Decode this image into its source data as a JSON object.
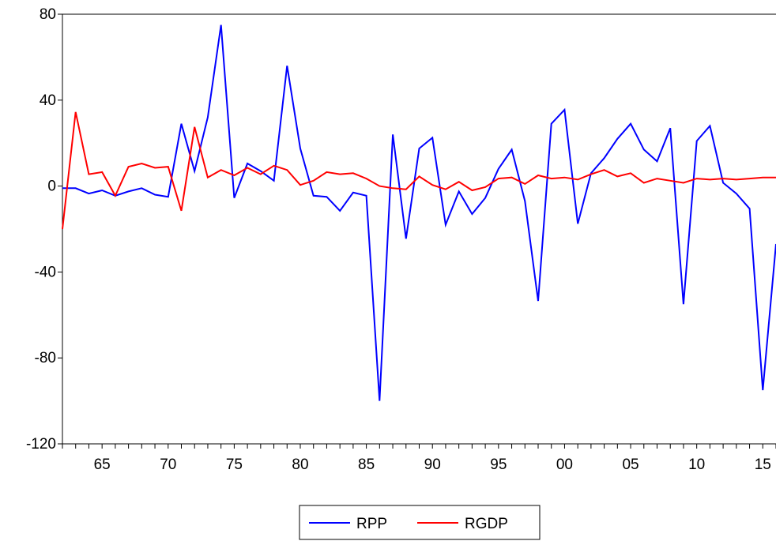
{
  "chart_data": {
    "type": "line",
    "title": "",
    "xlabel": "",
    "ylabel": "",
    "x": [
      1962,
      1963,
      1964,
      1965,
      1966,
      1967,
      1968,
      1969,
      1970,
      1971,
      1972,
      1973,
      1974,
      1975,
      1976,
      1977,
      1978,
      1979,
      1980,
      1981,
      1982,
      1983,
      1984,
      1985,
      1986,
      1987,
      1988,
      1989,
      1990,
      1991,
      1992,
      1993,
      1994,
      1995,
      1996,
      1997,
      1998,
      1999,
      2000,
      2001,
      2002,
      2003,
      2004,
      2005,
      2006,
      2007,
      2008,
      2009,
      2010,
      2011,
      2012,
      2013,
      2014,
      2015,
      2016
    ],
    "xlim": [
      1962,
      2016
    ],
    "ylim": [
      -120,
      80
    ],
    "x_ticks": [
      1965,
      1970,
      1975,
      1980,
      1985,
      1990,
      1995,
      2000,
      2005,
      2010,
      2015
    ],
    "x_tick_labels": [
      "65",
      "70",
      "75",
      "80",
      "85",
      "90",
      "95",
      "00",
      "05",
      "10",
      "15"
    ],
    "y_ticks": [
      80,
      40,
      0,
      -40,
      -80,
      -120
    ],
    "y_tick_labels": [
      "80",
      "40",
      "0",
      "-40",
      "-80",
      "-120"
    ],
    "grid": false,
    "legend_position": "bottom-center",
    "series": [
      {
        "name": "RPP",
        "color": "#0000ff",
        "values": [
          -1,
          -1,
          -3.5,
          -2,
          -4.5,
          -2.5,
          -1,
          -4,
          -5,
          29,
          7,
          32,
          75,
          -5.5,
          10.5,
          7,
          2.5,
          56,
          17.5,
          -4.5,
          -5,
          -11.5,
          -3,
          -4.5,
          -100,
          24,
          -24.5,
          17.5,
          22.5,
          -18,
          -2.5,
          -13,
          -5.5,
          8,
          17,
          -7,
          -53.5,
          29,
          35.5,
          -17.5,
          6,
          13,
          22,
          29,
          17,
          11.5,
          27,
          -55,
          21,
          28,
          1.5,
          -3.5,
          -10.5,
          -95,
          -27
        ]
      },
      {
        "name": "RGDP",
        "color": "#ff0000",
        "values": [
          -20,
          34.5,
          5.5,
          6.5,
          -4.5,
          9,
          10.5,
          8.5,
          9,
          -11.5,
          27.5,
          4,
          7.5,
          5,
          8.5,
          5.5,
          9.5,
          7.5,
          0.5,
          2.5,
          6.5,
          5.5,
          6,
          3.5,
          0,
          -1,
          -1.5,
          4.5,
          0.5,
          -1.5,
          2,
          -2,
          -0.5,
          3.5,
          4,
          1,
          5,
          3.5,
          4,
          3,
          5.5,
          7.5,
          4.5,
          6,
          1.5,
          3.5,
          2.5,
          1.5,
          3.5,
          3,
          3.5,
          3,
          3.5,
          4,
          4
        ]
      }
    ]
  }
}
